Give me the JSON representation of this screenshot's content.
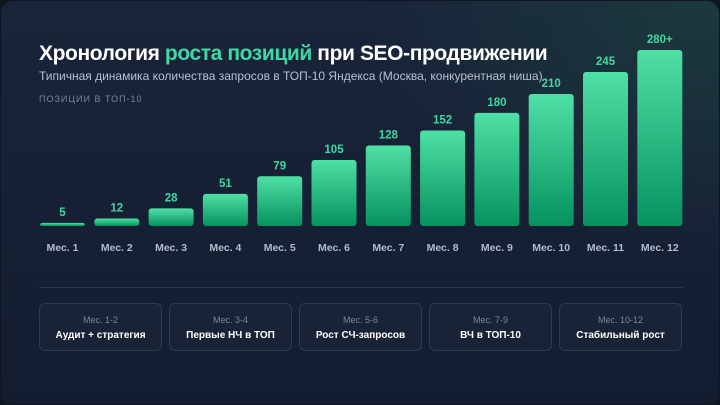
{
  "header": {
    "title_part1": "Хронология",
    "title_accent": "роста позиций",
    "title_part2": "при SEO-продвижении",
    "subtitle": "Типичная динамика количества запросов в ТОП-10 Яндекса (Москва, конкурентная ниша)",
    "ylabel": "Позиции в ТОП-10"
  },
  "colors": {
    "accent": "#3fd7a3",
    "bar_top": "#4fe0a6",
    "bar_bottom": "#07925f"
  },
  "chart_data": {
    "type": "bar",
    "title": "Хронология роста позиций при SEO-продвижении",
    "subtitle": "Типичная динамика количества запросов в ТОП-10 Яндекса (Москва, конкурентная ниша)",
    "ylabel": "Позиции в ТОП-10",
    "categories": [
      "Мес. 1",
      "Мес. 2",
      "Мес. 3",
      "Мес. 4",
      "Мес. 5",
      "Мес. 6",
      "Мес. 7",
      "Мес. 8",
      "Мес. 9",
      "Мес. 10",
      "Мес. 11",
      "Мес. 12"
    ],
    "values": [
      5,
      12,
      28,
      51,
      79,
      105,
      128,
      152,
      180,
      210,
      245,
      280
    ],
    "value_labels": [
      "5",
      "12",
      "28",
      "51",
      "79",
      "105",
      "128",
      "152",
      "180",
      "210",
      "245",
      "280+"
    ],
    "ylim": [
      0,
      280
    ],
    "grid": false
  },
  "phases": [
    {
      "period": "Мес. 1-2",
      "name": "Аудит + стратегия"
    },
    {
      "period": "Мес. 3-4",
      "name": "Первые НЧ в ТОП"
    },
    {
      "period": "Мес. 5-6",
      "name": "Рост СЧ-запросов"
    },
    {
      "period": "Мес. 7-9",
      "name": "ВЧ в ТОП-10"
    },
    {
      "period": "Мес. 10-12",
      "name": "Стабильный рост"
    }
  ]
}
